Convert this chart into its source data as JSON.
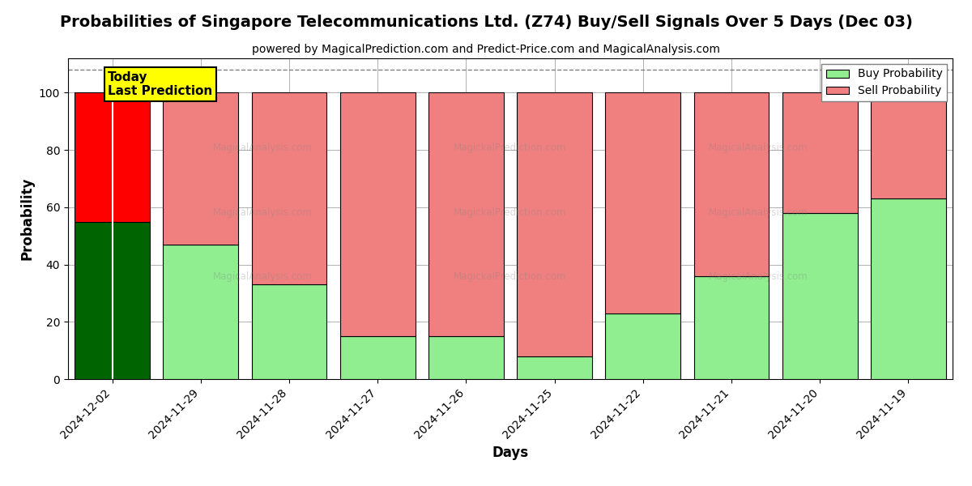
{
  "title": "Probabilities of Singapore Telecommunications Ltd. (Z74) Buy/Sell Signals Over 5 Days (Dec 03)",
  "subtitle": "powered by MagicalPrediction.com and Predict-Price.com and MagicalAnalysis.com",
  "xlabel": "Days",
  "ylabel": "Probability",
  "categories": [
    "2024-12-02",
    "2024-11-29",
    "2024-11-28",
    "2024-11-27",
    "2024-11-26",
    "2024-11-25",
    "2024-11-22",
    "2024-11-21",
    "2024-11-20",
    "2024-11-19"
  ],
  "buy_values": [
    55,
    47,
    33,
    15,
    15,
    8,
    23,
    36,
    58,
    63
  ],
  "sell_values": [
    45,
    53,
    67,
    85,
    85,
    92,
    77,
    64,
    42,
    37
  ],
  "today_buy_color": "#006400",
  "today_sell_color": "#ff0000",
  "buy_color": "#90ee90",
  "sell_color": "#f08080",
  "bar_edge_color": "#000000",
  "ylim": [
    0,
    112
  ],
  "yticks": [
    0,
    20,
    40,
    60,
    80,
    100
  ],
  "dashed_line_y": 108,
  "annotation_text": "Today\nLast Prediction",
  "annotation_bg": "#ffff00",
  "legend_buy_label": "Buy Probability",
  "legend_sell_label": "Sell Probability",
  "grid_color": "#b0b0b0",
  "title_fontsize": 14,
  "subtitle_fontsize": 10,
  "axis_label_fontsize": 12,
  "tick_fontsize": 10,
  "bar_width": 0.85
}
